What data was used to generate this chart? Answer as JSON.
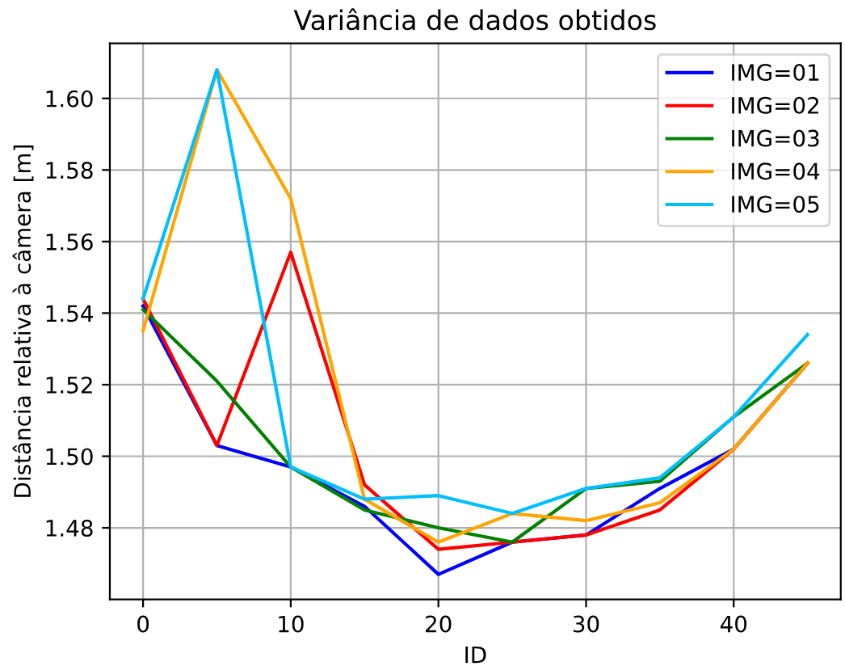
{
  "chart_data": {
    "type": "line",
    "title": "Variância de dados obtidos",
    "xlabel": "ID",
    "ylabel": "Distância relativa à câmera [m]",
    "x": [
      0,
      5,
      10,
      15,
      20,
      25,
      30,
      35,
      40,
      45
    ],
    "series": [
      {
        "name": "IMG=01",
        "color": "#0000ff",
        "values": [
          1.542,
          1.503,
          1.497,
          1.486,
          1.467,
          1.476,
          1.478,
          1.491,
          1.502,
          1.526
        ]
      },
      {
        "name": "IMG=02",
        "color": "#ff0000",
        "values": [
          1.544,
          1.503,
          1.557,
          1.492,
          1.474,
          1.476,
          1.478,
          1.485,
          1.502,
          1.526
        ]
      },
      {
        "name": "IMG=03",
        "color": "#008000",
        "values": [
          1.541,
          1.521,
          1.497,
          1.485,
          1.48,
          1.476,
          1.491,
          1.493,
          1.511,
          1.526
        ]
      },
      {
        "name": "IMG=04",
        "color": "#ffa500",
        "values": [
          1.535,
          1.608,
          1.572,
          1.488,
          1.476,
          1.484,
          1.482,
          1.487,
          1.502,
          1.526
        ]
      },
      {
        "name": "IMG=05",
        "color": "#00bfff",
        "values": [
          1.544,
          1.608,
          1.497,
          1.488,
          1.489,
          1.484,
          1.491,
          1.494,
          1.511,
          1.534
        ]
      }
    ],
    "xlim": [
      -2.25,
      47.25
    ],
    "ylim": [
      1.46,
      1.6154
    ],
    "xticks": [
      0,
      10,
      20,
      30,
      40
    ],
    "yticks": [
      {
        "value": 1.48,
        "label": "1.48"
      },
      {
        "value": 1.5,
        "label": "1.50"
      },
      {
        "value": 1.52,
        "label": "1.52"
      },
      {
        "value": 1.54,
        "label": "1.54"
      },
      {
        "value": 1.56,
        "label": "1.56"
      },
      {
        "value": 1.58,
        "label": "1.58"
      },
      {
        "value": 1.6,
        "label": "1.60"
      }
    ],
    "grid": true,
    "legend": "top right",
    "marker": "none",
    "line_style": "solid"
  }
}
